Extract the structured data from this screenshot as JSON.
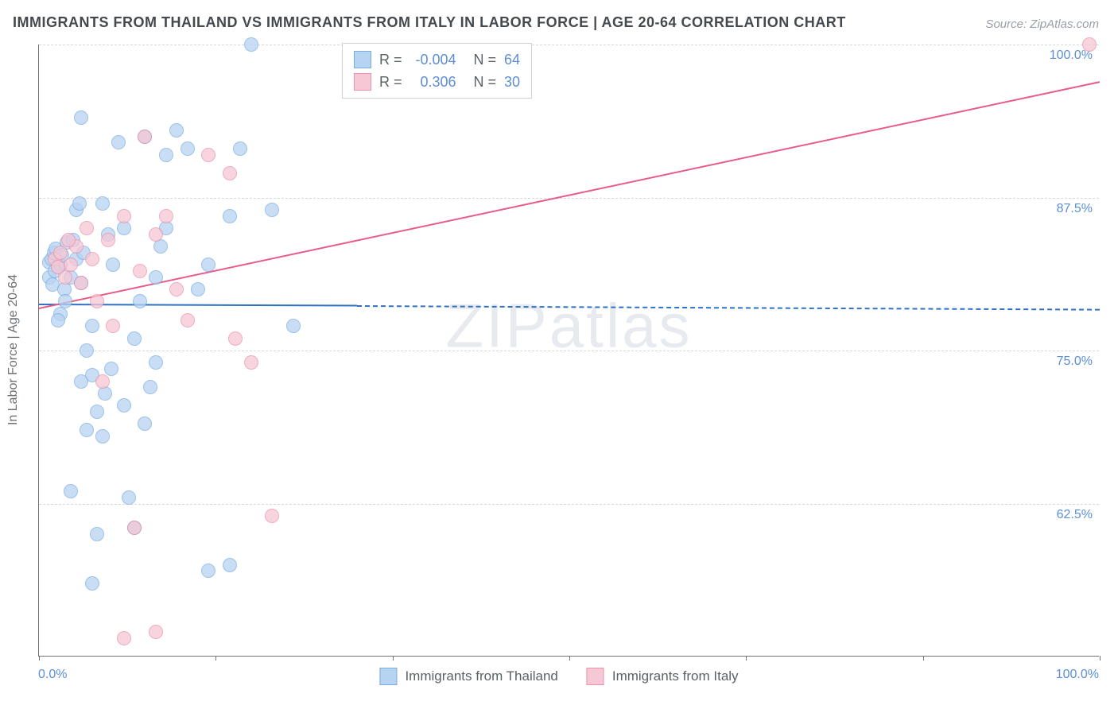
{
  "title": "IMMIGRANTS FROM THAILAND VS IMMIGRANTS FROM ITALY IN LABOR FORCE | AGE 20-64 CORRELATION CHART",
  "source": "Source: ZipAtlas.com",
  "ylabel": "In Labor Force | Age 20-64",
  "watermark": "ZIPatlas",
  "chart": {
    "type": "scatter",
    "background_color": "#ffffff",
    "grid_color": "#d6d9dc",
    "axis_color": "#737373",
    "tick_label_color": "#5b8fd6",
    "axis_label_color": "#6b7075",
    "xlim": [
      0,
      100
    ],
    "ylim": [
      50,
      100
    ],
    "x_tick_positions": [
      0,
      16.67,
      33.33,
      50,
      66.67,
      83.33,
      100
    ],
    "x_tick_labels_shown": {
      "left": "0.0%",
      "right": "100.0%"
    },
    "y_gridlines": [
      62.5,
      75.0,
      87.5,
      100.0
    ],
    "y_tick_labels": [
      "62.5%",
      "75.0%",
      "87.5%",
      "100.0%"
    ],
    "marker_radius": 9,
    "marker_border_width": 1,
    "marker_opacity": 0.75,
    "regression_line_width": 2
  },
  "series": [
    {
      "name": "Immigrants from Thailand",
      "color_fill": "#b7d3f2",
      "color_stroke": "#7aaee3",
      "line_color": "#2f72c4",
      "R_label": "R =",
      "R": "-0.004",
      "N_label": "N =",
      "N": "64",
      "regression": {
        "x1": 0,
        "y1": 78.8,
        "x2_solid_end": 30,
        "y2_solid_end": 78.7,
        "x2": 100,
        "y2": 78.4,
        "dashed_after": 30
      },
      "points": [
        [
          1.0,
          82.2
        ],
        [
          1.2,
          82.5
        ],
        [
          1.4,
          83.0
        ],
        [
          1.6,
          83.3
        ],
        [
          1.8,
          81.8
        ],
        [
          2.0,
          82.0
        ],
        [
          1.0,
          81.0
        ],
        [
          1.3,
          80.4
        ],
        [
          1.5,
          81.5
        ],
        [
          2.2,
          82.8
        ],
        [
          2.4,
          80.0
        ],
        [
          2.6,
          83.8
        ],
        [
          2.0,
          78.0
        ],
        [
          1.8,
          77.5
        ],
        [
          2.5,
          79.0
        ],
        [
          3.0,
          81.0
        ],
        [
          3.2,
          84.0
        ],
        [
          3.5,
          82.5
        ],
        [
          4.0,
          80.5
        ],
        [
          4.2,
          83.0
        ],
        [
          4.5,
          75.0
        ],
        [
          5.0,
          73.0
        ],
        [
          5.0,
          77.0
        ],
        [
          5.5,
          70.0
        ],
        [
          6.0,
          68.0
        ],
        [
          6.2,
          71.5
        ],
        [
          6.5,
          84.5
        ],
        [
          7.0,
          82.0
        ],
        [
          7.5,
          92.0
        ],
        [
          8.0,
          85.0
        ],
        [
          8.5,
          63.0
        ],
        [
          9.0,
          60.5
        ],
        [
          9.5,
          79.0
        ],
        [
          10.0,
          92.5
        ],
        [
          10.5,
          72.0
        ],
        [
          11.0,
          81.0
        ],
        [
          11.5,
          83.5
        ],
        [
          12.0,
          85.0
        ],
        [
          13.0,
          93.0
        ],
        [
          14.0,
          91.5
        ],
        [
          3.5,
          86.5
        ],
        [
          3.8,
          87.0
        ],
        [
          4.0,
          94.0
        ],
        [
          6.0,
          87.0
        ],
        [
          8.0,
          70.5
        ],
        [
          9.0,
          76.0
        ],
        [
          10.0,
          69.0
        ],
        [
          11.0,
          74.0
        ],
        [
          12.0,
          91.0
        ],
        [
          15.0,
          80.0
        ],
        [
          16.0,
          82.0
        ],
        [
          18.0,
          86.0
        ],
        [
          19.0,
          91.5
        ],
        [
          20.0,
          100.0
        ],
        [
          22.0,
          86.5
        ],
        [
          24.0,
          77.0
        ],
        [
          3.0,
          63.5
        ],
        [
          5.5,
          60.0
        ],
        [
          16.0,
          57.0
        ],
        [
          18.0,
          57.5
        ],
        [
          5.0,
          56.0
        ],
        [
          4.0,
          72.5
        ],
        [
          4.5,
          68.5
        ],
        [
          6.8,
          73.5
        ]
      ]
    },
    {
      "name": "Immigrants from Italy",
      "color_fill": "#f6c7d4",
      "color_stroke": "#ea93ab",
      "line_color": "#e85a8a",
      "R_label": "R =",
      "R": "0.306",
      "N_label": "N =",
      "N": "30",
      "regression": {
        "x1": 0,
        "y1": 78.5,
        "x2": 100,
        "y2": 97.0,
        "dashed_after": null
      },
      "points": [
        [
          1.5,
          82.5
        ],
        [
          2.0,
          83.0
        ],
        [
          2.5,
          81.0
        ],
        [
          3.0,
          82.0
        ],
        [
          3.5,
          83.5
        ],
        [
          4.0,
          80.5
        ],
        [
          4.5,
          85.0
        ],
        [
          5.0,
          82.5
        ],
        [
          5.5,
          79.0
        ],
        [
          6.0,
          72.5
        ],
        [
          6.5,
          84.0
        ],
        [
          7.0,
          77.0
        ],
        [
          8.0,
          86.0
        ],
        [
          9.0,
          60.5
        ],
        [
          9.5,
          81.5
        ],
        [
          10.0,
          92.5
        ],
        [
          11.0,
          84.5
        ],
        [
          12.0,
          86.0
        ],
        [
          13.0,
          80.0
        ],
        [
          14.0,
          77.5
        ],
        [
          16.0,
          91.0
        ],
        [
          18.0,
          89.5
        ],
        [
          18.5,
          76.0
        ],
        [
          20.0,
          74.0
        ],
        [
          22.0,
          61.5
        ],
        [
          8.0,
          51.5
        ],
        [
          11.0,
          52.0
        ],
        [
          1.8,
          81.8
        ],
        [
          2.8,
          84.0
        ],
        [
          99.0,
          100.0
        ]
      ]
    }
  ],
  "legend_top": {
    "rows": [
      {
        "series": 0
      },
      {
        "series": 1
      }
    ]
  },
  "legend_bottom": {
    "items": [
      {
        "series": 0
      },
      {
        "series": 1
      }
    ]
  }
}
